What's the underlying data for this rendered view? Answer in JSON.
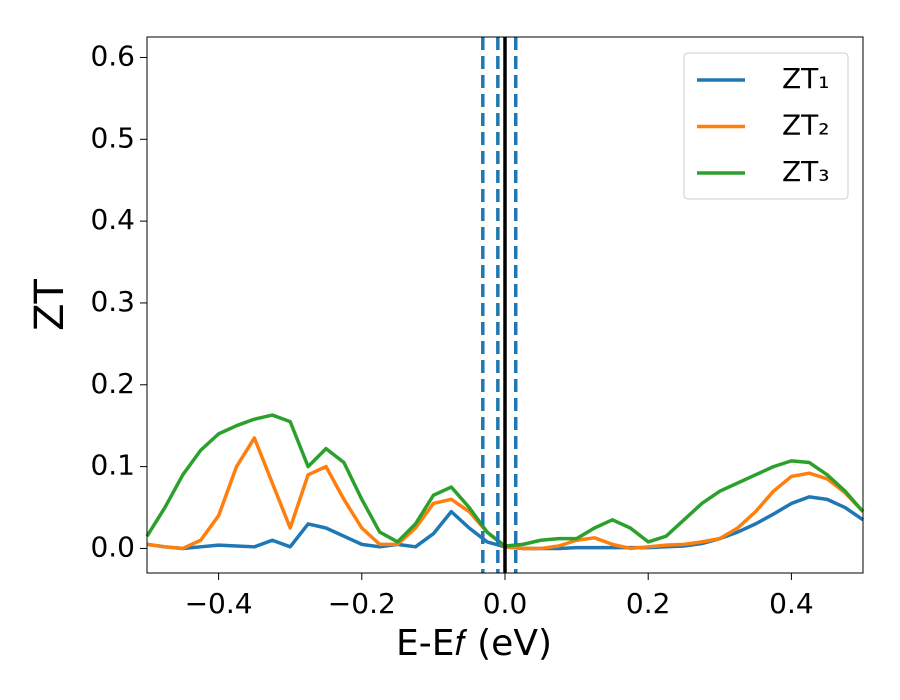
{
  "chart_data": {
    "type": "line",
    "xlabel": "E-E𝑓 (eV)",
    "ylabel": "ZT",
    "x": [
      -0.5,
      -0.475,
      -0.45,
      -0.425,
      -0.4,
      -0.375,
      -0.35,
      -0.325,
      -0.3,
      -0.275,
      -0.25,
      -0.225,
      -0.2,
      -0.175,
      -0.15,
      -0.125,
      -0.1,
      -0.075,
      -0.05,
      -0.025,
      0,
      0.025,
      0.05,
      0.075,
      0.1,
      0.125,
      0.15,
      0.175,
      0.2,
      0.225,
      0.25,
      0.275,
      0.3,
      0.325,
      0.35,
      0.375,
      0.4,
      0.425,
      0.45,
      0.475,
      0.5
    ],
    "series": [
      {
        "name": "ZT₁",
        "color": "#1f77b4",
        "values": [
          0.005,
          0.002,
          0.0,
          0.002,
          0.004,
          0.003,
          0.002,
          0.01,
          0.002,
          0.03,
          0.025,
          0.015,
          0.005,
          0.002,
          0.005,
          0.002,
          0.018,
          0.045,
          0.025,
          0.008,
          0.002,
          0.0,
          0.0,
          0.0,
          0.001,
          0.001,
          0.001,
          0.001,
          0.001,
          0.002,
          0.003,
          0.006,
          0.012,
          0.02,
          0.03,
          0.042,
          0.055,
          0.063,
          0.06,
          0.05,
          0.035
        ]
      },
      {
        "name": "ZT₂",
        "color": "#ff7f0e",
        "values": [
          0.005,
          0.002,
          0.0,
          0.01,
          0.04,
          0.1,
          0.135,
          0.08,
          0.025,
          0.09,
          0.1,
          0.06,
          0.025,
          0.005,
          0.005,
          0.025,
          0.055,
          0.06,
          0.045,
          0.02,
          0.002,
          0.0,
          0.0,
          0.003,
          0.01,
          0.013,
          0.005,
          0.0,
          0.002,
          0.004,
          0.005,
          0.008,
          0.012,
          0.025,
          0.045,
          0.07,
          0.088,
          0.092,
          0.085,
          0.068,
          0.045
        ]
      },
      {
        "name": "ZT₃",
        "color": "#2ca02c",
        "values": [
          0.015,
          0.05,
          0.09,
          0.12,
          0.14,
          0.15,
          0.158,
          0.163,
          0.155,
          0.1,
          0.122,
          0.105,
          0.06,
          0.02,
          0.008,
          0.03,
          0.065,
          0.075,
          0.05,
          0.02,
          0.003,
          0.005,
          0.01,
          0.012,
          0.012,
          0.025,
          0.035,
          0.025,
          0.008,
          0.015,
          0.035,
          0.055,
          0.07,
          0.08,
          0.09,
          0.1,
          0.107,
          0.105,
          0.09,
          0.07,
          0.045
        ]
      }
    ],
    "vlines": [
      {
        "x": -0.031,
        "color": "#1f77b4",
        "style": "dashed"
      },
      {
        "x": -0.01,
        "color": "#1f77b4",
        "style": "dashed"
      },
      {
        "x": 0.015,
        "color": "#1f77b4",
        "style": "dashed"
      },
      {
        "x": 0,
        "color": "#000000",
        "style": "solid"
      }
    ],
    "xlim": [
      -0.5,
      0.5
    ],
    "xticks": [
      {
        "value": -0.4,
        "label": "−0.4"
      },
      {
        "value": -0.2,
        "label": "−0.2"
      },
      {
        "value": 0,
        "label": "0.0"
      },
      0.2,
      0.4
    ],
    "ylim": [
      -0.03,
      0.625
    ],
    "yticks": [
      {
        "value": 0,
        "label": "0.0"
      },
      0.1,
      0.2,
      0.3,
      0.4,
      0.5,
      0.6
    ],
    "legend": "upper right"
  }
}
